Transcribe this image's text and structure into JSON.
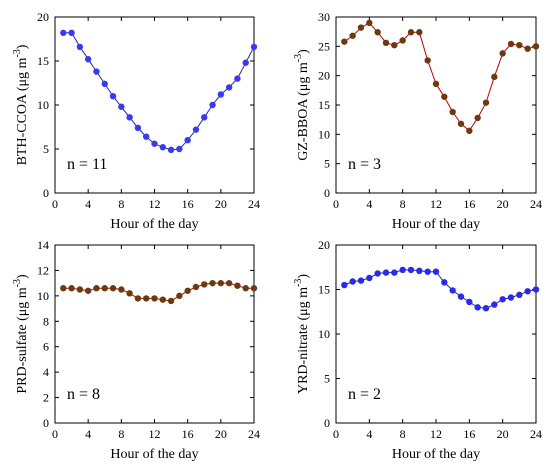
{
  "chart_data": [
    {
      "type": "line",
      "ylabel": "BTH-CCOA (μg m",
      "ylabel_sup": "-3",
      "ylabel_close": ")",
      "xlabel": "Hour of the day",
      "annotation": "n = 11",
      "xlim": [
        0,
        24
      ],
      "ylim": [
        0,
        20
      ],
      "xticks": [
        0,
        4,
        8,
        12,
        16,
        20,
        24
      ],
      "yticks": [
        0,
        5,
        10,
        15,
        20
      ],
      "line_color": "#1f2aa8",
      "marker_color": "#3a3aef",
      "x": [
        1,
        2,
        3,
        4,
        5,
        6,
        7,
        8,
        9,
        10,
        11,
        12,
        13,
        14,
        15,
        16,
        17,
        18,
        19,
        20,
        21,
        22,
        23,
        24
      ],
      "values": [
        18.2,
        18.2,
        16.6,
        15.2,
        13.8,
        12.4,
        11.0,
        9.8,
        8.6,
        7.4,
        6.4,
        5.6,
        5.2,
        4.9,
        5.0,
        6.0,
        7.2,
        8.6,
        10.0,
        11.2,
        12.0,
        13.0,
        14.8,
        16.6
      ]
    },
    {
      "type": "line",
      "ylabel": "GZ-BBOA (μg m",
      "ylabel_sup": "-3",
      "ylabel_close": ")",
      "xlabel": "Hour of the day",
      "annotation": "n = 3",
      "xlim": [
        0,
        24
      ],
      "ylim": [
        0,
        30
      ],
      "xticks": [
        0,
        4,
        8,
        12,
        16,
        20,
        24
      ],
      "yticks": [
        0,
        5,
        10,
        15,
        20,
        25,
        30
      ],
      "line_color": "#c00000",
      "marker_color": "#6b3a10",
      "x": [
        1,
        2,
        3,
        4,
        5,
        6,
        7,
        8,
        9,
        10,
        11,
        12,
        13,
        14,
        15,
        16,
        17,
        18,
        19,
        20,
        21,
        22,
        23,
        24
      ],
      "values": [
        25.8,
        26.8,
        28.2,
        29.0,
        27.4,
        25.6,
        25.2,
        26.0,
        27.4,
        27.4,
        22.6,
        18.6,
        16.4,
        13.8,
        11.8,
        10.6,
        12.8,
        15.4,
        19.8,
        23.8,
        25.4,
        25.2,
        24.6,
        25.0
      ]
    },
    {
      "type": "line",
      "ylabel": "PRD-sulfate (μg m",
      "ylabel_sup": "-3",
      "ylabel_close": ")",
      "xlabel": "Hour of the day",
      "annotation": "n = 8",
      "xlim": [
        0,
        24
      ],
      "ylim": [
        0,
        14
      ],
      "xticks": [
        0,
        4,
        8,
        12,
        16,
        20,
        24
      ],
      "yticks": [
        0,
        2,
        4,
        6,
        8,
        10,
        12,
        14
      ],
      "line_color": "#c00000",
      "marker_color": "#6b3a10",
      "x": [
        1,
        2,
        3,
        4,
        5,
        6,
        7,
        8,
        9,
        10,
        11,
        12,
        13,
        14,
        15,
        16,
        17,
        18,
        19,
        20,
        21,
        22,
        23,
        24
      ],
      "values": [
        10.6,
        10.6,
        10.5,
        10.4,
        10.6,
        10.6,
        10.6,
        10.5,
        10.2,
        9.8,
        9.8,
        9.8,
        9.7,
        9.6,
        10.0,
        10.4,
        10.7,
        10.9,
        11.0,
        11.0,
        11.0,
        10.8,
        10.6,
        10.6
      ]
    },
    {
      "type": "line",
      "ylabel": "YRD-nitrate (μg m",
      "ylabel_sup": "-3",
      "ylabel_close": ")",
      "xlabel": "Hour of the day",
      "annotation": "n = 2",
      "xlim": [
        0,
        24
      ],
      "ylim": [
        0,
        20
      ],
      "xticks": [
        0,
        4,
        8,
        12,
        16,
        20,
        24
      ],
      "yticks": [
        0,
        5,
        10,
        15,
        20
      ],
      "line_color": "#1f2aa8",
      "marker_color": "#2a2ae8",
      "x": [
        1,
        2,
        3,
        4,
        5,
        6,
        7,
        8,
        9,
        10,
        11,
        12,
        13,
        14,
        15,
        16,
        17,
        18,
        19,
        20,
        21,
        22,
        23,
        24
      ],
      "values": [
        15.5,
        15.9,
        16.0,
        16.3,
        16.8,
        16.9,
        16.9,
        17.2,
        17.2,
        17.1,
        17.0,
        17.0,
        15.8,
        14.9,
        14.2,
        13.6,
        13.0,
        12.9,
        13.3,
        13.9,
        14.1,
        14.4,
        14.8,
        15.0
      ]
    }
  ]
}
